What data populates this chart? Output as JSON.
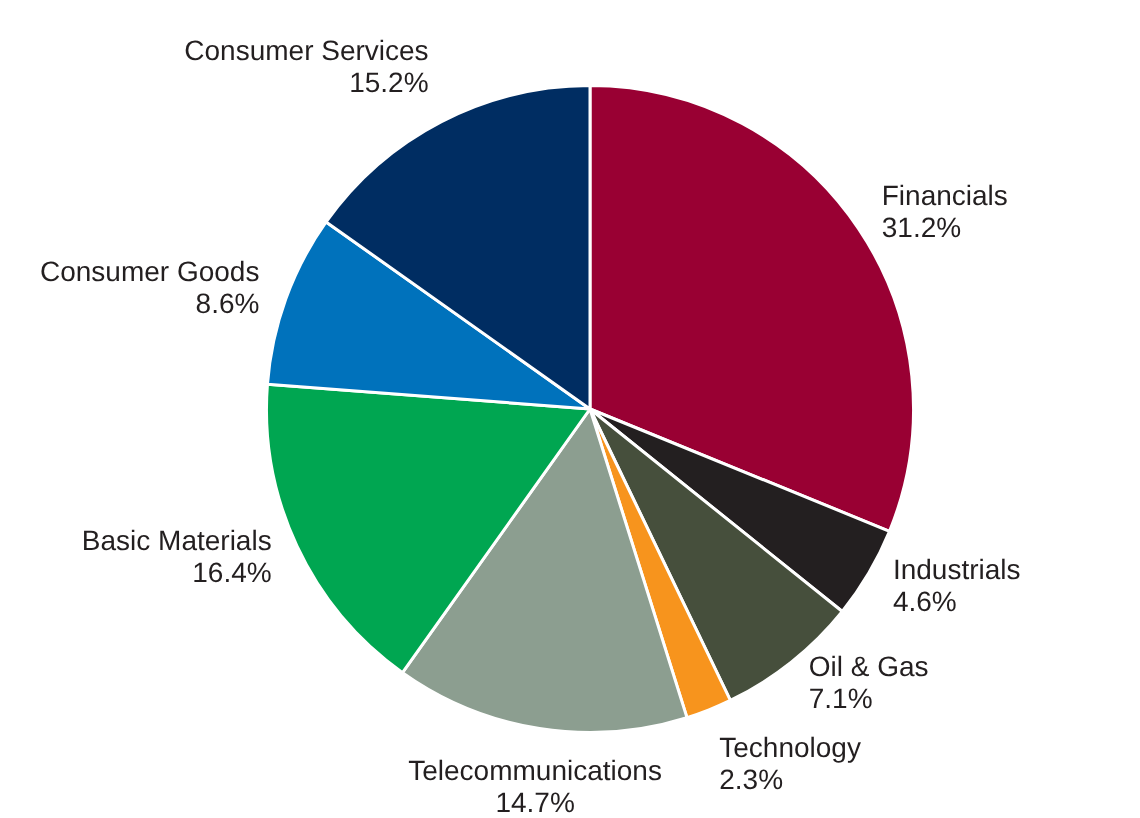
{
  "chart_data": {
    "type": "pie",
    "categories": [
      "Financials",
      "Industrials",
      "Oil & Gas",
      "Technology",
      "Telecommunications",
      "Basic Materials",
      "Consumer Goods",
      "Consumer Services"
    ],
    "values": [
      31.2,
      4.6,
      7.1,
      2.3,
      14.7,
      16.4,
      8.6,
      15.2
    ],
    "value_labels": [
      "31.2%",
      "4.6%",
      "7.1%",
      "2.3%",
      "14.7%",
      "16.4%",
      "8.6%",
      "15.2%"
    ],
    "colors": [
      "#990033",
      "#231f20",
      "#464f3c",
      "#f7941d",
      "#8c9e90",
      "#00a651",
      "#0072bc",
      "#002d62"
    ],
    "legend": false
  }
}
